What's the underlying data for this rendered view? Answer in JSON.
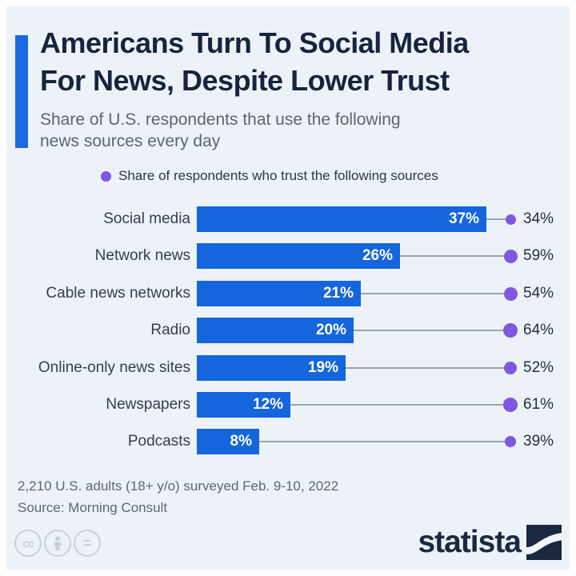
{
  "header": {
    "title_line1": "Americans Turn To Social Media",
    "title_line2": "For News, Despite Lower Trust",
    "subtitle": "Share of U.S. respondents that use the following news sources every day"
  },
  "legend": {
    "label": "Share of respondents who trust the following sources"
  },
  "chart_data": {
    "type": "bar",
    "orientation": "horizontal",
    "categories": [
      "Social media",
      "Network news",
      "Cable news networks",
      "Radio",
      "Online-only news sites",
      "Newspapers",
      "Podcasts"
    ],
    "series": [
      {
        "name": "Share of respondents that use the source every day",
        "unit": "%",
        "style": "bar",
        "color": "#1565dd",
        "values": [
          37,
          26,
          21,
          20,
          19,
          12,
          8
        ]
      },
      {
        "name": "Share of respondents who trust the following sources",
        "unit": "%",
        "style": "dot",
        "color": "#7e57e2",
        "values": [
          34,
          59,
          54,
          64,
          52,
          61,
          39
        ]
      }
    ],
    "title": "Americans Turn To Social Media For News, Despite Lower Trust",
    "xlabel": "",
    "ylabel": "",
    "xlim": [
      0,
      37
    ],
    "grid": false,
    "value_labels": true,
    "legend_position": "top-center"
  },
  "footer": {
    "note": "2,210 U.S. adults (18+ y/o) surveyed Feb. 9-10, 2022",
    "source": "Source: Morning Consult",
    "brand": "statista",
    "license_icons": [
      {
        "name": "cc-icon",
        "glyph": "cc"
      },
      {
        "name": "attribution-person-icon",
        "glyph": "person"
      },
      {
        "name": "equals-icon",
        "glyph": "="
      }
    ]
  },
  "colors": {
    "background": "#edf2f8",
    "bar_blue": "#1565dd",
    "accent_blue": "#1a6ae0",
    "title_navy": "#16243e",
    "trust_purple": "#7e57e2",
    "connector_gray": "#9ba4ae",
    "brand_navy": "#1b2940"
  }
}
